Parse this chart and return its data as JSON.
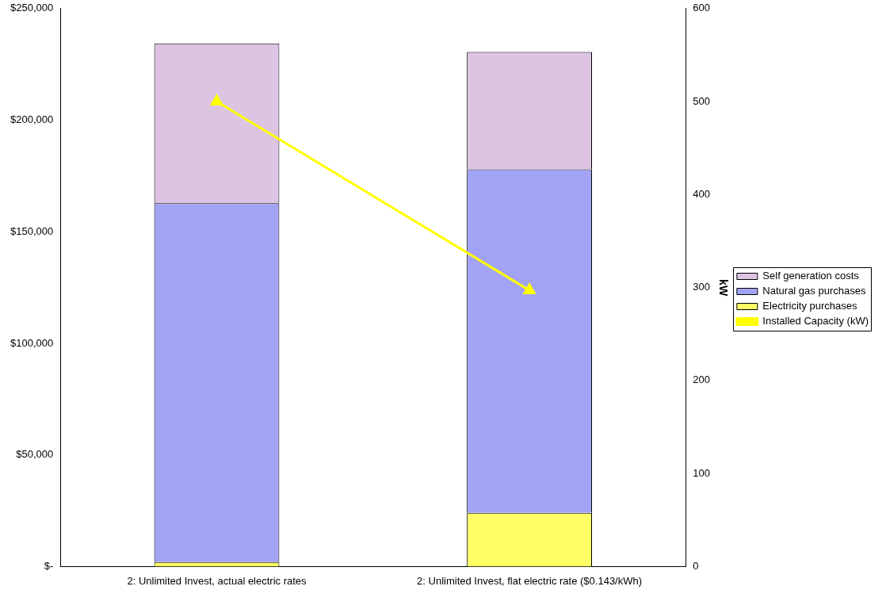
{
  "chart_data": {
    "type": "bar",
    "stacked": true,
    "categories": [
      "2: Unlimited Invest, actual electric rates",
      "2: Unlimited Invest, flat electric rate ($0.143/kWh)"
    ],
    "series": [
      {
        "name": "Electricity purchases",
        "color": "#ffff66",
        "values": [
          2000,
          24000
        ]
      },
      {
        "name": "Natural gas purchases",
        "color": "#a3a3f5",
        "values": [
          160800,
          154000
        ]
      },
      {
        "name": "Self generation costs",
        "color": "#dcc4e2",
        "values": [
          71600,
          52600
        ]
      },
      {
        "name": "Installed Capacity (kW)",
        "type": "line",
        "axis": "y2",
        "color": "#ffff00",
        "marker": "triangle",
        "values": [
          500,
          297
        ]
      }
    ],
    "ylim": [
      0,
      250000
    ],
    "yticks": [
      {
        "value": 0,
        "label": "$-"
      },
      {
        "value": 50000,
        "label": "$50,000"
      },
      {
        "value": 100000,
        "label": "$100,000"
      },
      {
        "value": 150000,
        "label": "$150,000"
      },
      {
        "value": 200000,
        "label": "$200,000"
      },
      {
        "value": 250000,
        "label": "$250,000"
      }
    ],
    "y2label": "kW",
    "y2lim": [
      0,
      600
    ],
    "y2ticks": [
      0,
      100,
      200,
      300,
      400,
      500,
      600
    ],
    "grid": false,
    "legend": "right"
  }
}
